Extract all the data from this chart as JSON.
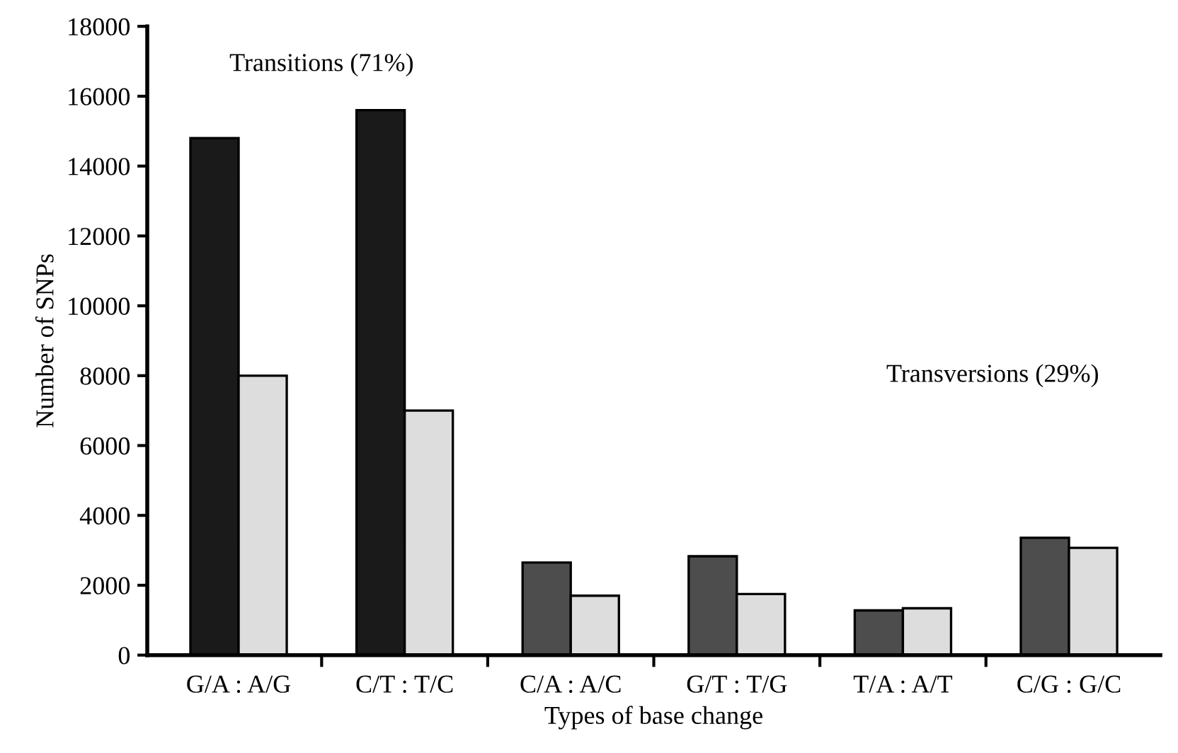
{
  "chart_data": {
    "type": "bar",
    "xlabel": "Types of base change",
    "ylabel": "Number of SNPs",
    "categories": [
      "G/A : A/G",
      "C/T : T/C",
      "C/A : A/C",
      "G/T : T/G",
      "T/A : A/T",
      "C/G : G/C"
    ],
    "series": [
      {
        "colors": [
          "#1a1a1a",
          "#1a1a1a",
          "#4d4d4d",
          "#4d4d4d",
          "#4d4d4d",
          "#4d4d4d"
        ],
        "values": [
          14800,
          15600,
          2650,
          2830,
          1280,
          3360
        ]
      },
      {
        "color": "#dddddd",
        "values": [
          8000,
          7000,
          1700,
          1750,
          1340,
          3070
        ]
      }
    ],
    "annotations": [
      "Transitions (71%)",
      "Transversions (29%)"
    ],
    "ylim": [
      0,
      18000
    ],
    "yticks": [
      0,
      2000,
      4000,
      6000,
      8000,
      10000,
      12000,
      14000,
      16000,
      18000
    ],
    "grid": false,
    "legend": false
  }
}
